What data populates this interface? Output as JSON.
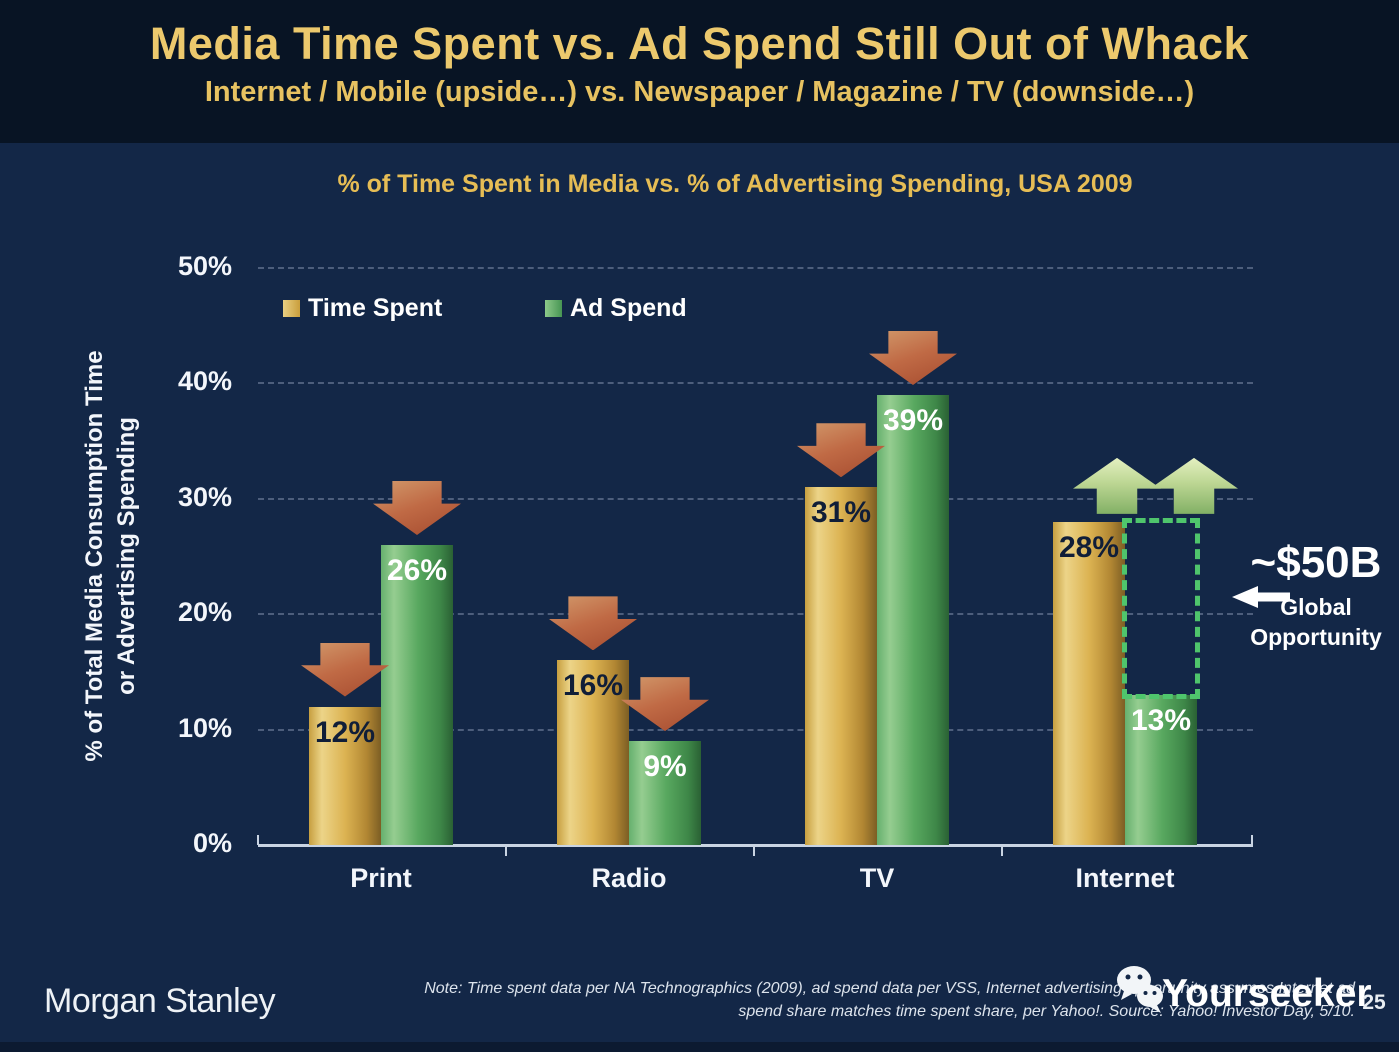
{
  "slide": {
    "title": "Media Time Spent vs. Ad Spend Still Out of Whack",
    "subtitle": "Internet / Mobile (upside…) vs. Newspaper / Magazine / TV (downside…)",
    "page_number": "25"
  },
  "chart_data": {
    "type": "bar",
    "title": "% of Time Spent in Media vs. % of Advertising Spending, USA 2009",
    "ylabel_line1": "% of Total Media Consumption Time",
    "ylabel_line2": "or Advertising Spending",
    "categories": [
      "Print",
      "Radio",
      "TV",
      "Internet"
    ],
    "series": [
      {
        "name": "Time Spent",
        "color": "#d7ab46",
        "values": [
          12,
          16,
          31,
          28
        ]
      },
      {
        "name": "Ad Spend",
        "color": "#57a75e",
        "values": [
          26,
          9,
          39,
          13
        ]
      }
    ],
    "value_label_format": "{value}%",
    "ylim": [
      0,
      50
    ],
    "yticks": [
      0,
      10,
      20,
      30,
      40,
      50
    ],
    "ytick_labels": [
      "0%",
      "10%",
      "20%",
      "30%",
      "40%",
      "50%"
    ],
    "grid": "horizontal dashed",
    "legend_position": "top-left inside plot",
    "trend_arrows": {
      "Print": "down",
      "Radio": "down",
      "TV": "down",
      "Internet": "up"
    },
    "trend_colors": {
      "down": "#c06a45",
      "up": "#bcd693"
    },
    "annotation": {
      "category": "Internet",
      "series": "Ad Spend",
      "from_value": 13,
      "to_value": 28,
      "label": "~$50B",
      "sublabel_line1": "Global",
      "sublabel_line2": "Opportunity",
      "box_color": "#4fc56c"
    }
  },
  "footer": {
    "brand": "Morgan Stanley",
    "note_line1": "Note: Time spent data per NA Technographics (2009), ad spend data per VSS, Internet advertising opportunity assumes Internet ad",
    "note_line2": "spend share matches time spent share, per Yahoo!. Source: Yahoo! Investor Day, 5/10.",
    "watermark": "Yourseeker",
    "watermark_icon": "wechat-icon"
  },
  "colors": {
    "background": "#132747",
    "header_background": "#081424",
    "title_gold": "#ecc96d",
    "chart_title_gold": "#e6bd55",
    "axis_text": "#f3f6fb",
    "baseline": "#c9d4e3"
  }
}
